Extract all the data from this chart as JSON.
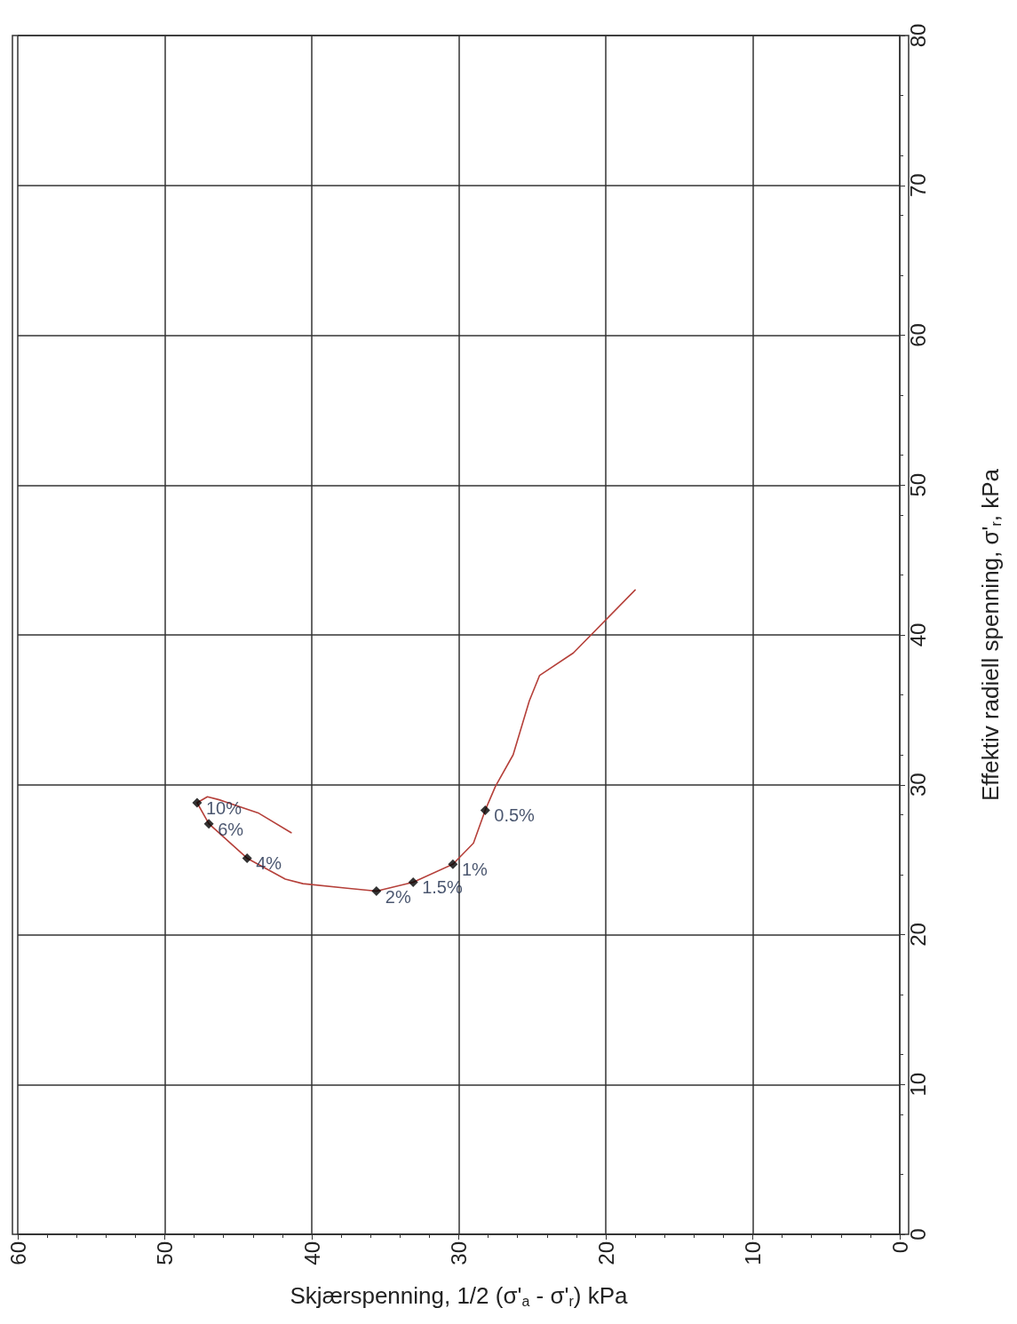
{
  "chart_data": {
    "type": "line",
    "xlabel": "Skjærspenning, 1/2 (σ'$_{a}$ - σ'$_{r}$) kPa",
    "ylabel": "Effektiv radiell spenning, σ'$_{r}$, kPa",
    "xlim": [
      60,
      0
    ],
    "xticks": [
      60,
      50,
      40,
      30,
      20,
      10,
      0
    ],
    "ylim": [
      0,
      80
    ],
    "yticks": [
      0,
      10,
      20,
      30,
      40,
      50,
      60,
      70,
      80
    ],
    "grid": true,
    "series": [
      {
        "color": "#b5403a",
        "marker": "none",
        "line_style": "solid",
        "x": [
          18.0,
          22.2,
          24.5,
          25.2,
          26.3,
          27.5,
          28.2,
          29.0,
          30.4,
          33.1,
          35.6,
          37.6,
          40.6,
          41.8,
          44.4,
          47.0,
          47.8,
          47.1,
          46.3,
          43.6,
          41.4
        ],
        "values": [
          43.0,
          38.8,
          37.3,
          35.6,
          32.0,
          29.9,
          28.3,
          26.1,
          24.7,
          23.5,
          22.9,
          23.1,
          23.4,
          23.7,
          25.1,
          27.4,
          28.8,
          29.2,
          29.0,
          28.1,
          26.8
        ]
      },
      {
        "type": "scatter",
        "color": "#000000",
        "marker": "diamond",
        "x": [
          28.2,
          30.4,
          33.1,
          35.6,
          44.4,
          47.0,
          47.8
        ],
        "values": [
          28.3,
          24.7,
          23.5,
          22.9,
          25.1,
          27.4,
          28.8
        ]
      }
    ],
    "annotations": [
      {
        "text": "0.5%",
        "x": 28.2,
        "y": 28.3
      },
      {
        "text": "1%",
        "x": 30.4,
        "y": 24.7
      },
      {
        "text": "1.5%",
        "x": 33.1,
        "y": 23.5
      },
      {
        "text": "2%",
        "x": 35.6,
        "y": 22.9
      },
      {
        "text": "4%",
        "x": 44.4,
        "y": 25.1
      },
      {
        "text": "6%",
        "x": 47.0,
        "y": 27.4
      },
      {
        "text": "10%",
        "x": 47.8,
        "y": 28.8
      }
    ]
  }
}
